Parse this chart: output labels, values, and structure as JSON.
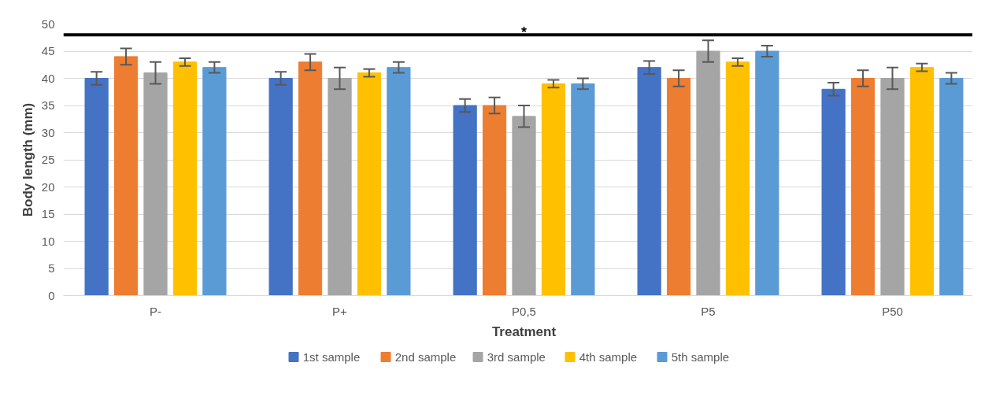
{
  "chart_data": {
    "type": "bar",
    "xlabel": "Treatment",
    "ylabel": "Body length (mm)",
    "categories": [
      "P-",
      "P+",
      "P0,5",
      "P5",
      "P50"
    ],
    "series": [
      {
        "name": "1st sample",
        "color": "#4472c4",
        "values": [
          40,
          40,
          35,
          42,
          38
        ],
        "errors": [
          1.2,
          1.2,
          1.2,
          1.2,
          1.2
        ]
      },
      {
        "name": "2nd sample",
        "color": "#ed7d31",
        "values": [
          44,
          43,
          35,
          40,
          40
        ],
        "errors": [
          1.5,
          1.5,
          1.5,
          1.5,
          1.5
        ]
      },
      {
        "name": "3rd sample",
        "color": "#a5a5a5",
        "values": [
          41,
          40,
          33,
          45,
          40
        ],
        "errors": [
          2,
          2,
          2,
          2,
          2
        ]
      },
      {
        "name": "4th sample",
        "color": "#ffc000",
        "values": [
          43,
          41,
          39,
          43,
          42
        ],
        "errors": [
          0.7,
          0.7,
          0.7,
          0.7,
          0.7
        ]
      },
      {
        "name": "5th sample",
        "color": "#5b9bd5",
        "values": [
          42,
          42,
          39,
          45,
          40
        ],
        "errors": [
          1,
          1,
          1,
          1,
          1
        ]
      }
    ],
    "ylim": [
      0,
      50
    ],
    "yticks": [
      0,
      5,
      10,
      15,
      20,
      25,
      30,
      35,
      40,
      45,
      50
    ],
    "grid": "y",
    "legend": "bottom",
    "ref_lines": [
      {
        "axis": "y",
        "value": 48,
        "label": "*",
        "color": "#000000"
      }
    ]
  }
}
